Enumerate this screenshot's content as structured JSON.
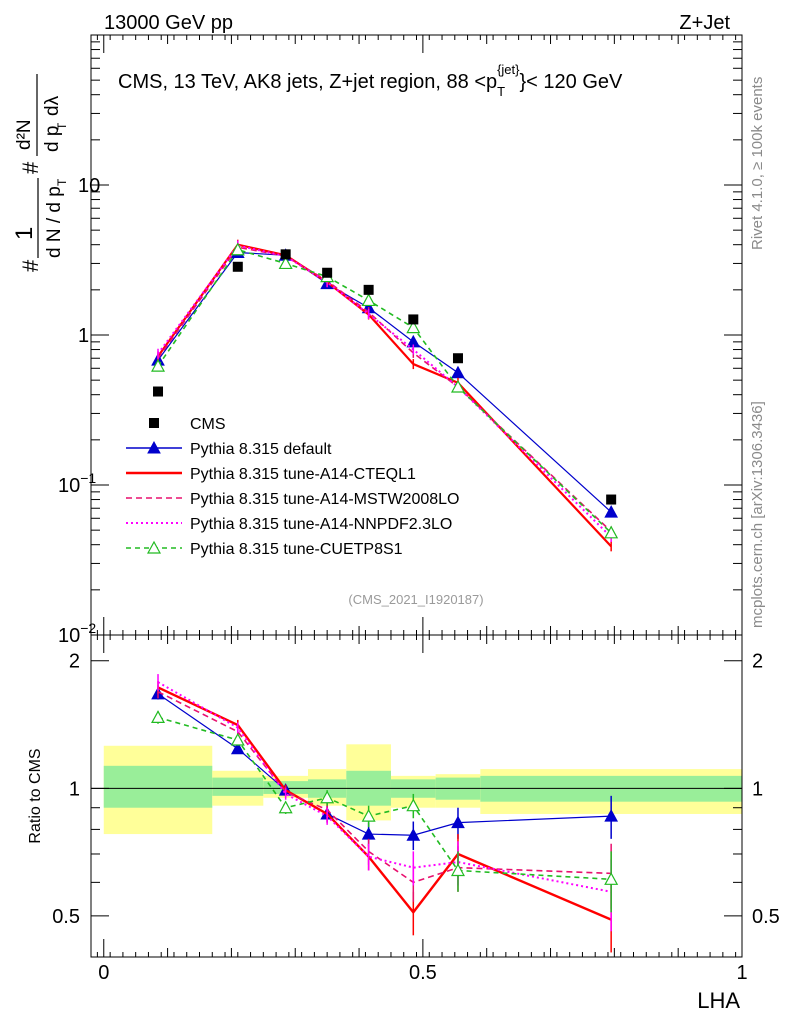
{
  "header": {
    "energy_label": "13000 GeV pp",
    "process_label": "Z+Jet"
  },
  "side_labels": {
    "rivet": "Rivet 4.1.0, ≥ 100k events",
    "source": "mcplots.cern.ch [arXiv:1306.3436]"
  },
  "analysis_id": "(CMS_2021_I1920187)",
  "chart_data": [
    {
      "type": "line",
      "panel": "main",
      "title": "CMS, 13 TeV, AK8 jets, Z+jet region, 88 <p_T^{jet}< 120 GeV",
      "title_parts": {
        "prefix": "CMS, 13 TeV, AK8 jets, Z+jet region, 88 <p",
        "sub": "T",
        "sup": "{jet}",
        "suffix": "}< 120 GeV"
      },
      "ylabel": "1/(dN/dp_T) d²N/(dp_T dλ)",
      "ylabel_parts": {
        "hash": "#",
        "one": "1",
        "den": "d N / d p",
        "sub_t": "T",
        "num2": "d²N",
        "den2": "d p",
        "dl": "dλ"
      },
      "yscale": "log",
      "ylim": [
        0.01,
        100
      ],
      "xlim": [
        -0.02,
        1.0
      ],
      "yticks": [
        {
          "value": 0.01,
          "base": "10",
          "exp": "−2"
        },
        {
          "value": 0.1,
          "base": "10",
          "exp": "−1"
        },
        {
          "value": 1,
          "base": "1",
          "exp": ""
        },
        {
          "value": 10,
          "base": "10",
          "exp": ""
        }
      ],
      "x": [
        0.085,
        0.21,
        0.285,
        0.35,
        0.415,
        0.485,
        0.555,
        0.795
      ],
      "data_series": {
        "name": "CMS",
        "values": [
          0.42,
          2.85,
          3.45,
          2.6,
          2.0,
          1.27,
          0.7,
          0.08
        ]
      },
      "series": [
        {
          "name": "Pythia 8.315 default",
          "color": "#0000cc",
          "dash": "",
          "marker": "triangle",
          "values": [
            0.68,
            3.55,
            3.4,
            2.2,
            1.52,
            0.9,
            0.56,
            0.066
          ]
        },
        {
          "name": "Pythia 8.315 tune-A14-CTEQL1",
          "color": "#ff0000",
          "dash": "",
          "marker": "none",
          "values": [
            0.72,
            4.0,
            3.4,
            2.25,
            1.37,
            0.64,
            0.48,
            0.039
          ]
        },
        {
          "name": "Pythia 8.315 tune-A14-MSTW2008LO",
          "color": "#e8106e",
          "dash": "6,4",
          "marker": "none",
          "values": [
            0.7,
            3.85,
            3.35,
            2.3,
            1.42,
            0.76,
            0.45,
            0.049
          ]
        },
        {
          "name": "Pythia 8.315 tune-A14-NNPDF2.3LO",
          "color": "#ff00ff",
          "dash": "2,3",
          "marker": "none",
          "values": [
            0.75,
            3.95,
            3.35,
            2.25,
            1.38,
            0.8,
            0.45,
            0.045
          ]
        },
        {
          "name": "Pythia 8.315 tune-CUETP8S1",
          "color": "#22bb22",
          "dash": "5,4",
          "marker": "open-triangle",
          "values": [
            0.62,
            3.7,
            3.0,
            2.45,
            1.7,
            1.12,
            0.45,
            0.048
          ]
        }
      ],
      "legend": [
        "CMS",
        "Pythia 8.315 default",
        "Pythia 8.315 tune-A14-CTEQL1",
        "Pythia 8.315 tune-A14-MSTW2008LO",
        "Pythia 8.315 tune-A14-NNPDF2.3LO",
        "Pythia 8.315 tune-CUETP8S1"
      ],
      "legend_position": "lower-left"
    },
    {
      "type": "line",
      "panel": "ratio",
      "ylabel": "Ratio to CMS",
      "xlabel": "LHA",
      "xlim": [
        -0.02,
        1.0
      ],
      "ylim": [
        0.4,
        2.3
      ],
      "xticks": [
        {
          "value": 0,
          "label": "0"
        },
        {
          "value": 0.5,
          "label": "0.5"
        },
        {
          "value": 1,
          "label": "1"
        }
      ],
      "yticks": [
        {
          "value": 0.5,
          "label": "0.5"
        },
        {
          "value": 1,
          "label": "1"
        },
        {
          "value": 2,
          "label": "2"
        }
      ],
      "reference_line": 1,
      "bins": [
        {
          "lo": 0.0,
          "hi": 0.17,
          "stat": [
            0.9,
            1.13
          ],
          "total": [
            0.78,
            1.26
          ]
        },
        {
          "lo": 0.17,
          "hi": 0.25,
          "stat": [
            0.96,
            1.06
          ],
          "total": [
            0.91,
            1.1
          ]
        },
        {
          "lo": 0.25,
          "hi": 0.32,
          "stat": [
            0.97,
            1.04
          ],
          "total": [
            0.95,
            1.07
          ]
        },
        {
          "lo": 0.32,
          "hi": 0.38,
          "stat": [
            0.95,
            1.05
          ],
          "total": [
            0.91,
            1.11
          ]
        },
        {
          "lo": 0.38,
          "hi": 0.45,
          "stat": [
            0.91,
            1.1
          ],
          "total": [
            0.84,
            1.27
          ]
        },
        {
          "lo": 0.45,
          "hi": 0.52,
          "stat": [
            0.95,
            1.05
          ],
          "total": [
            0.9,
            1.07
          ]
        },
        {
          "lo": 0.52,
          "hi": 0.59,
          "stat": [
            0.94,
            1.06
          ],
          "total": [
            0.9,
            1.08
          ]
        },
        {
          "lo": 0.59,
          "hi": 1.0,
          "stat": [
            0.93,
            1.07
          ],
          "total": [
            0.87,
            1.11
          ]
        }
      ],
      "x": [
        0.085,
        0.21,
        0.285,
        0.35,
        0.415,
        0.485,
        0.555,
        0.795
      ],
      "series": [
        {
          "name": "Pythia 8.315 default",
          "values": [
            1.67,
            1.24,
            0.99,
            0.87,
            0.78,
            0.775,
            0.83,
            0.86
          ],
          "err": [
            0.05,
            0.03,
            0.03,
            0.04,
            0.05,
            0.06,
            0.07,
            0.1
          ]
        },
        {
          "name": "Pythia 8.315 tune-A14-CTEQL1",
          "values": [
            1.73,
            1.41,
            0.99,
            0.87,
            0.69,
            0.51,
            0.7,
            0.49
          ],
          "err": [
            0.06,
            0.04,
            0.03,
            0.04,
            0.05,
            0.06,
            0.08,
            0.12
          ]
        },
        {
          "name": "Pythia 8.315 tune-A14-MSTW2008LO",
          "values": [
            1.69,
            1.36,
            0.98,
            0.89,
            0.71,
            0.6,
            0.65,
            0.63
          ],
          "err": [
            0.06,
            0.04,
            0.03,
            0.04,
            0.05,
            0.06,
            0.08,
            0.11
          ]
        },
        {
          "name": "Pythia 8.315 tune-A14-NNPDF2.3LO",
          "values": [
            1.78,
            1.39,
            0.97,
            0.86,
            0.69,
            0.65,
            0.67,
            0.57
          ],
          "err": [
            0.08,
            0.04,
            0.03,
            0.04,
            0.05,
            0.06,
            0.08,
            0.11
          ]
        },
        {
          "name": "Pythia 8.315 tune-CUETP8S1",
          "values": [
            1.47,
            1.3,
            0.9,
            0.95,
            0.86,
            0.91,
            0.64,
            0.61
          ],
          "err": [
            0.05,
            0.03,
            0.03,
            0.04,
            0.05,
            0.06,
            0.07,
            0.1
          ]
        }
      ]
    }
  ]
}
